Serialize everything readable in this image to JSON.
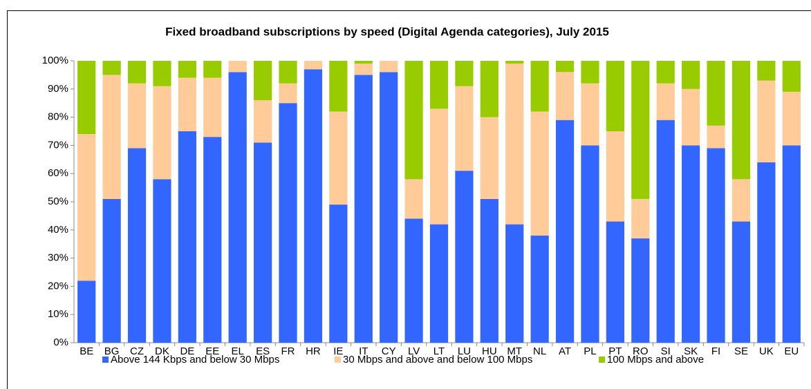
{
  "chart_data": {
    "type": "stacked_bar",
    "title": "Fixed broadband subscriptions by speed (Digital Agenda categories),  July 2015",
    "categories": [
      "BE",
      "BG",
      "CZ",
      "DK",
      "DE",
      "EE",
      "EL",
      "ES",
      "FR",
      "HR",
      "IE",
      "IT",
      "CY",
      "LV",
      "LT",
      "LU",
      "HU",
      "MT",
      "NL",
      "AT",
      "PL",
      "PT",
      "RO",
      "SI",
      "SK",
      "FI",
      "SE",
      "UK",
      "EU"
    ],
    "series": [
      {
        "name": "Above 144 Kbps and below 30 Mbps",
        "color": "#3366ff",
        "values": [
          22,
          51,
          69,
          58,
          75,
          73,
          96,
          71,
          85,
          97,
          49,
          95,
          96,
          44,
          42,
          61,
          51,
          42,
          38,
          79,
          70,
          43,
          37,
          79,
          70,
          69,
          43,
          64,
          70
        ]
      },
      {
        "name": "30 Mbps and above and below 100 Mbps",
        "color": "#ffcc99",
        "values": [
          52,
          44,
          23,
          33,
          19,
          21,
          4,
          15,
          7,
          3,
          33,
          4,
          4,
          14,
          41,
          30,
          29,
          57,
          44,
          17,
          22,
          32,
          14,
          13,
          20,
          8,
          15,
          29,
          19
        ]
      },
      {
        "name": "100 Mbps and above",
        "color": "#99cc00",
        "values": [
          26,
          5,
          8,
          9,
          6,
          6,
          0,
          14,
          8,
          0,
          18,
          1,
          0,
          42,
          17,
          9,
          20,
          1,
          18,
          4,
          8,
          25,
          49,
          8,
          10,
          23,
          42,
          7,
          11
        ]
      }
    ],
    "ylim": [
      0,
      100
    ],
    "yticks": [
      {
        "value": 0,
        "label": "0%"
      },
      {
        "value": 10,
        "label": "10%"
      },
      {
        "value": 20,
        "label": "20%"
      },
      {
        "value": 30,
        "label": "30%"
      },
      {
        "value": 40,
        "label": "40%"
      },
      {
        "value": 50,
        "label": "50%"
      },
      {
        "value": 60,
        "label": "60%"
      },
      {
        "value": 70,
        "label": "70%"
      },
      {
        "value": 80,
        "label": "80%"
      },
      {
        "value": 90,
        "label": "90%"
      },
      {
        "value": 100,
        "label": "100%"
      }
    ],
    "legend": "bottom"
  }
}
